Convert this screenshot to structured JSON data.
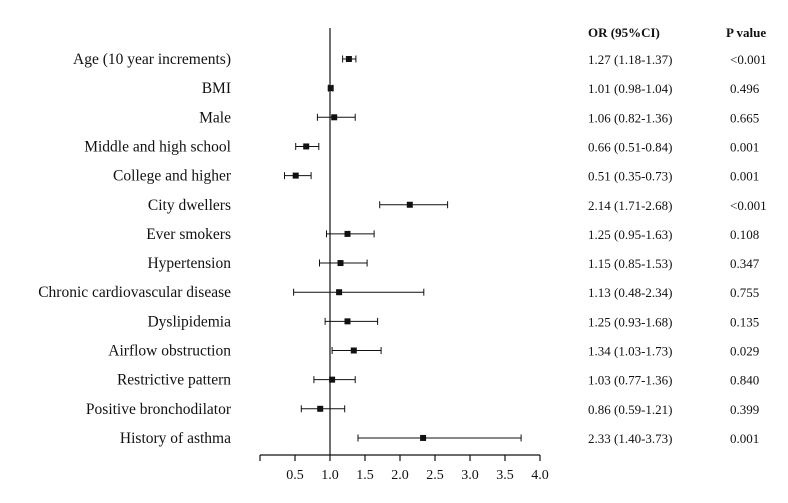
{
  "chart_data": {
    "type": "forest",
    "title": "",
    "xlabel": "",
    "ylabel": "",
    "xlim": [
      0.0,
      4.0
    ],
    "reference_line": 1.0,
    "xticks": [
      "0.5",
      "1.0",
      "1.5",
      "2.0",
      "2.5",
      "3.0",
      "3.5",
      "4.0"
    ],
    "tick_values": [
      0.5,
      1.0,
      1.5,
      2.0,
      2.5,
      3.0,
      3.5,
      4.0
    ],
    "columns": {
      "or": "OR (95%CI)",
      "p": "P value"
    },
    "rows": [
      {
        "label": "Age (10 year increments)",
        "or": 1.27,
        "lo": 1.18,
        "hi": 1.37,
        "or_text": "1.27 (1.18-1.37)",
        "p": "<0.001"
      },
      {
        "label": "BMI",
        "or": 1.01,
        "lo": 0.98,
        "hi": 1.04,
        "or_text": "1.01 (0.98-1.04)",
        "p": "0.496"
      },
      {
        "label": "Male",
        "or": 1.06,
        "lo": 0.82,
        "hi": 1.36,
        "or_text": "1.06 (0.82-1.36)",
        "p": "0.665"
      },
      {
        "label": "Middle and high school",
        "or": 0.66,
        "lo": 0.51,
        "hi": 0.84,
        "or_text": "0.66 (0.51-0.84)",
        "p": "0.001"
      },
      {
        "label": "College and higher",
        "or": 0.51,
        "lo": 0.35,
        "hi": 0.73,
        "or_text": "0.51 (0.35-0.73)",
        "p": "0.001"
      },
      {
        "label": "City dwellers",
        "or": 2.14,
        "lo": 1.71,
        "hi": 2.68,
        "or_text": "2.14 (1.71-2.68)",
        "p": "<0.001"
      },
      {
        "label": "Ever smokers",
        "or": 1.25,
        "lo": 0.95,
        "hi": 1.63,
        "or_text": "1.25 (0.95-1.63)",
        "p": "0.108"
      },
      {
        "label": "Hypertension",
        "or": 1.15,
        "lo": 0.85,
        "hi": 1.53,
        "or_text": "1.15 (0.85-1.53)",
        "p": "0.347"
      },
      {
        "label": "Chronic cardiovascular disease",
        "or": 1.13,
        "lo": 0.48,
        "hi": 2.34,
        "or_text": "1.13 (0.48-2.34)",
        "p": "0.755"
      },
      {
        "label": "Dyslipidemia",
        "or": 1.25,
        "lo": 0.93,
        "hi": 1.68,
        "or_text": "1.25 (0.93-1.68)",
        "p": "0.135"
      },
      {
        "label": "Airflow obstruction",
        "or": 1.34,
        "lo": 1.03,
        "hi": 1.73,
        "or_text": "1.34 (1.03-1.73)",
        "p": "0.029"
      },
      {
        "label": "Restrictive pattern",
        "or": 1.03,
        "lo": 0.77,
        "hi": 1.36,
        "or_text": "1.03 (0.77-1.36)",
        "p": "0.840"
      },
      {
        "label": "Positive bronchodilator",
        "or": 0.86,
        "lo": 0.59,
        "hi": 1.21,
        "or_text": "0.86 (0.59-1.21)",
        "p": "0.399"
      },
      {
        "label": "History of asthma",
        "or": 2.33,
        "lo": 1.4,
        "hi": 3.73,
        "or_text": "2.33 (1.40-3.73)",
        "p": "0.001"
      }
    ]
  }
}
